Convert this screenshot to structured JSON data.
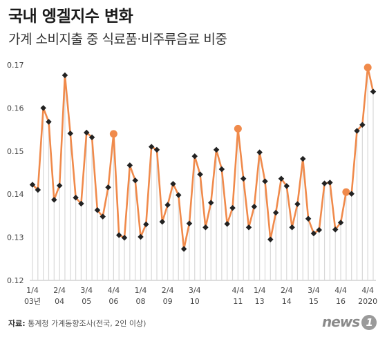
{
  "title": "국내 엥겔지수 변화",
  "subtitle": "가계 소비지출 중 식료품·비주류음료 비중",
  "source": {
    "label": "자료:",
    "text": "통계청 가계동향조사(전국, 2인 이상)"
  },
  "logo": {
    "text": "news",
    "badge": "1"
  },
  "colors": {
    "line": "#f08a4b",
    "highlight": "#f08a4b",
    "marker": "#222222",
    "stem": "#d8d8d8"
  },
  "chart_data": {
    "type": "line",
    "title": "국내 엥겔지수 변화",
    "subtitle": "가계 소비지출 중 식료품·비주류음료 비중",
    "xlabel": "",
    "ylabel": "",
    "ylim": [
      0.12,
      0.17
    ],
    "yticks": [
      "0.12",
      "0.13",
      "0.14",
      "0.15",
      "0.16",
      "0.17"
    ],
    "grid": false,
    "x_tick_labels": [
      {
        "index": 0,
        "top": "1/4",
        "bottom": "03년"
      },
      {
        "index": 5,
        "top": "2/4",
        "bottom": "04"
      },
      {
        "index": 10,
        "top": "3/4",
        "bottom": "05"
      },
      {
        "index": 15,
        "top": "4/4",
        "bottom": "06"
      },
      {
        "index": 20,
        "top": "1/4",
        "bottom": "08"
      },
      {
        "index": 25,
        "top": "2/4",
        "bottom": "09"
      },
      {
        "index": 30,
        "top": "3/4",
        "bottom": "10"
      },
      {
        "index": 35,
        "top": "",
        "bottom": ""
      },
      {
        "index": 38,
        "top": "4/4",
        "bottom": "11"
      },
      {
        "index": 42,
        "top": "1/4",
        "bottom": "13"
      },
      {
        "index": 47,
        "top": "2/4",
        "bottom": "14"
      },
      {
        "index": 52,
        "top": "3/4",
        "bottom": "15"
      },
      {
        "index": 57,
        "top": "4/4",
        "bottom": "16"
      },
      {
        "index": 62,
        "top": "4/4",
        "bottom": "2020"
      }
    ],
    "highlights": [
      15,
      38,
      58,
      62
    ],
    "series": [
      {
        "values": [
          0.1422,
          0.141,
          0.16,
          0.1568,
          0.1387,
          0.142,
          0.1676,
          0.1541,
          0.1392,
          0.1378,
          0.1543,
          0.1532,
          0.1363,
          0.1348,
          0.1416,
          0.154,
          0.1305,
          0.1299,
          0.1467,
          0.1432,
          0.1301,
          0.133,
          0.151,
          0.1503,
          0.1336,
          0.1375,
          0.1424,
          0.1398,
          0.1273,
          0.1332,
          0.1488,
          0.1446,
          0.1323,
          0.138,
          0.1503,
          0.1458,
          0.1331,
          0.1368,
          0.1552,
          0.1436,
          0.1323,
          0.1371,
          0.1497,
          0.143,
          0.1295,
          0.1357,
          0.1436,
          0.1419,
          0.1323,
          0.1377,
          0.1482,
          0.1343,
          0.1309,
          0.1317,
          0.1425,
          0.1427,
          0.1318,
          0.1334,
          0.1405,
          0.1401,
          0.1547,
          0.1561,
          0.1694,
          0.1638
        ]
      }
    ]
  }
}
